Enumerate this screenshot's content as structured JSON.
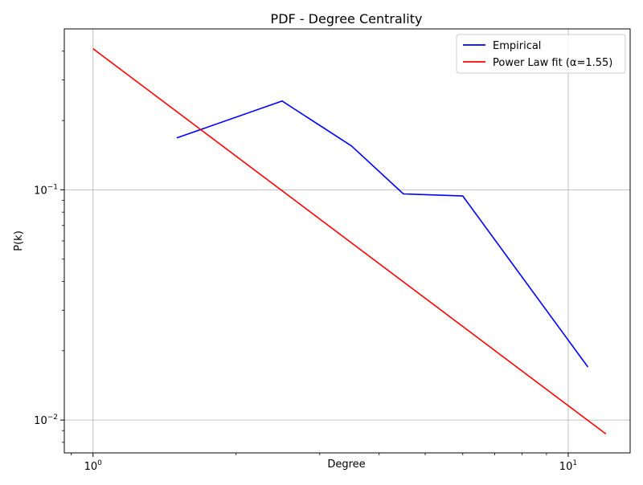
{
  "chart_data": {
    "type": "line",
    "title": "PDF - Degree Centrality",
    "xlabel": "Degree",
    "ylabel": "P(k)",
    "xscale": "log",
    "yscale": "log",
    "xlim": [
      0.87,
      13.5
    ],
    "ylim": [
      0.0072,
      0.5
    ],
    "grid": true,
    "legend_position": "top-right",
    "x_ticks": [
      {
        "value": 1,
        "base": "10",
        "exp": "0"
      },
      {
        "value": 10,
        "base": "10",
        "exp": "1"
      }
    ],
    "y_ticks": [
      {
        "value": 0.01,
        "base": "10",
        "exp": "−2"
      },
      {
        "value": 0.1,
        "base": "10",
        "exp": "−1"
      }
    ],
    "series": [
      {
        "name": "Empirical",
        "color": "#0000ff",
        "x": [
          1.5,
          2.5,
          3.5,
          4.5,
          6.0,
          11.0
        ],
        "y": [
          0.168,
          0.243,
          0.155,
          0.096,
          0.094,
          0.017
        ]
      },
      {
        "name": "Power Law fit (α=1.55)",
        "color": "#ff0000",
        "x": [
          1.0,
          12.0
        ],
        "y": [
          0.41,
          0.0087
        ]
      }
    ]
  }
}
